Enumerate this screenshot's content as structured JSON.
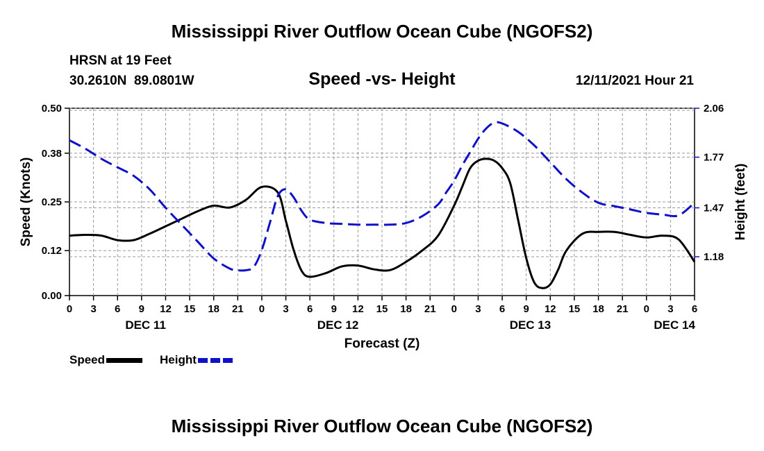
{
  "header": {
    "title": "Mississippi River Outflow Ocean Cube (NGOFS2)",
    "station": "HRSN at 19 Feet",
    "coords": "30.2610N  89.0801W",
    "subtitle": "Speed -vs- Height",
    "datetime": "12/11/2021 Hour 21"
  },
  "footer": {
    "title": "Mississippi River Outflow Ocean Cube (NGOFS2)"
  },
  "legend": {
    "speed": "Speed",
    "height": "Height"
  },
  "colors": {
    "speed": "#000000",
    "height": "#1010c8",
    "grid": "#999999"
  },
  "chart_data": {
    "type": "line",
    "title": "Speed -vs- Height",
    "xlabel": "Forecast (Z)",
    "ylabel": "Speed (Knots)",
    "y2label": "Height (feet)",
    "x_hours_range": [
      0,
      78
    ],
    "xtick_labels": [
      "0",
      "3",
      "6",
      "9",
      "12",
      "15",
      "18",
      "21",
      "0",
      "3",
      "6",
      "9",
      "12",
      "15",
      "18",
      "21",
      "0",
      "3",
      "6",
      "9",
      "12",
      "15",
      "18",
      "21",
      "0",
      "3",
      "6"
    ],
    "date_labels": [
      {
        "label": "DEC 11",
        "hour": 9.5
      },
      {
        "label": "DEC 12",
        "hour": 33.5
      },
      {
        "label": "DEC 13",
        "hour": 57.5
      },
      {
        "label": "DEC 14",
        "hour": 75.5
      }
    ],
    "ylim": [
      0,
      0.5
    ],
    "yticks": [
      "0.00",
      "0.12",
      "0.25",
      "0.38",
      "0.50"
    ],
    "y2lim": [
      0.95,
      2.06
    ],
    "y2ticks": [
      "1.18",
      "1.47",
      "1.77",
      "2.06"
    ],
    "grid": true,
    "legend_position": "bottom-left",
    "series": [
      {
        "name": "Speed",
        "axis": "left",
        "x": [
          0,
          2,
          4,
          6,
          8,
          10,
          12,
          14,
          16,
          18,
          20,
          22,
          24,
          26,
          27,
          28,
          29,
          30,
          32,
          34,
          36,
          38,
          40,
          42,
          44,
          46,
          48,
          49,
          50,
          51,
          52,
          53,
          54,
          55,
          56,
          57,
          58,
          59,
          60,
          61,
          62,
          64,
          66,
          68,
          70,
          72,
          74,
          76,
          78
        ],
        "values": [
          0.16,
          0.162,
          0.16,
          0.148,
          0.148,
          0.165,
          0.185,
          0.205,
          0.225,
          0.24,
          0.235,
          0.255,
          0.29,
          0.275,
          0.2,
          0.12,
          0.065,
          0.05,
          0.06,
          0.078,
          0.08,
          0.07,
          0.068,
          0.09,
          0.12,
          0.16,
          0.24,
          0.29,
          0.34,
          0.36,
          0.365,
          0.36,
          0.34,
          0.3,
          0.2,
          0.1,
          0.035,
          0.02,
          0.03,
          0.07,
          0.12,
          0.165,
          0.17,
          0.17,
          0.162,
          0.155,
          0.16,
          0.15,
          0.09
        ]
      },
      {
        "name": "Height",
        "axis": "right",
        "x": [
          0,
          2,
          4,
          6,
          8,
          10,
          12,
          14,
          16,
          18,
          20,
          21,
          22,
          23,
          24,
          25,
          26,
          27,
          28,
          29,
          30,
          32,
          34,
          36,
          38,
          40,
          42,
          44,
          46,
          47,
          48,
          49,
          50,
          51,
          52,
          53,
          54,
          56,
          58,
          60,
          62,
          64,
          66,
          68,
          70,
          72,
          74,
          76,
          78
        ],
        "values": [
          1.87,
          1.82,
          1.76,
          1.71,
          1.66,
          1.58,
          1.47,
          1.37,
          1.27,
          1.17,
          1.11,
          1.1,
          1.1,
          1.12,
          1.22,
          1.38,
          1.54,
          1.58,
          1.53,
          1.45,
          1.4,
          1.38,
          1.375,
          1.37,
          1.37,
          1.37,
          1.38,
          1.42,
          1.49,
          1.56,
          1.63,
          1.72,
          1.8,
          1.88,
          1.94,
          1.975,
          1.97,
          1.92,
          1.84,
          1.74,
          1.64,
          1.56,
          1.5,
          1.48,
          1.46,
          1.44,
          1.43,
          1.425,
          1.5
        ]
      }
    ]
  }
}
